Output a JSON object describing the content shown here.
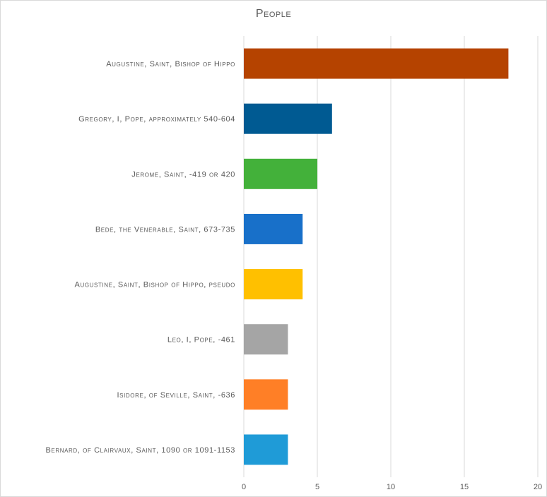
{
  "chart_data": {
    "type": "bar",
    "orientation": "horizontal",
    "title": "People",
    "xlabel": "",
    "ylabel": "",
    "xlim": [
      0,
      20
    ],
    "xticks": [
      0,
      5,
      10,
      15,
      20
    ],
    "grid": true,
    "legend": "none",
    "categories": [
      "Augustine, Saint, Bishop of Hippo",
      "Gregory, I, Pope, approximately 540-604",
      "Jerome, Saint, -419  or 420",
      "Bede, the Venerable, Saint, 673-735",
      "Augustine, Saint, Bishop of Hippo, pseudo",
      "Leo, I, Pope, -461",
      "Isidore, of Seville, Saint, -636",
      "Bernard, of Clairvaux, Saint, 1090  or 1091-1153"
    ],
    "values": [
      18,
      6,
      5,
      4,
      4,
      3,
      3,
      3
    ],
    "colors": [
      "#b54300",
      "#005a92",
      "#43b13a",
      "#1870c9",
      "#ffc000",
      "#a5a5a5",
      "#ff7f26",
      "#1f9bd7"
    ]
  }
}
